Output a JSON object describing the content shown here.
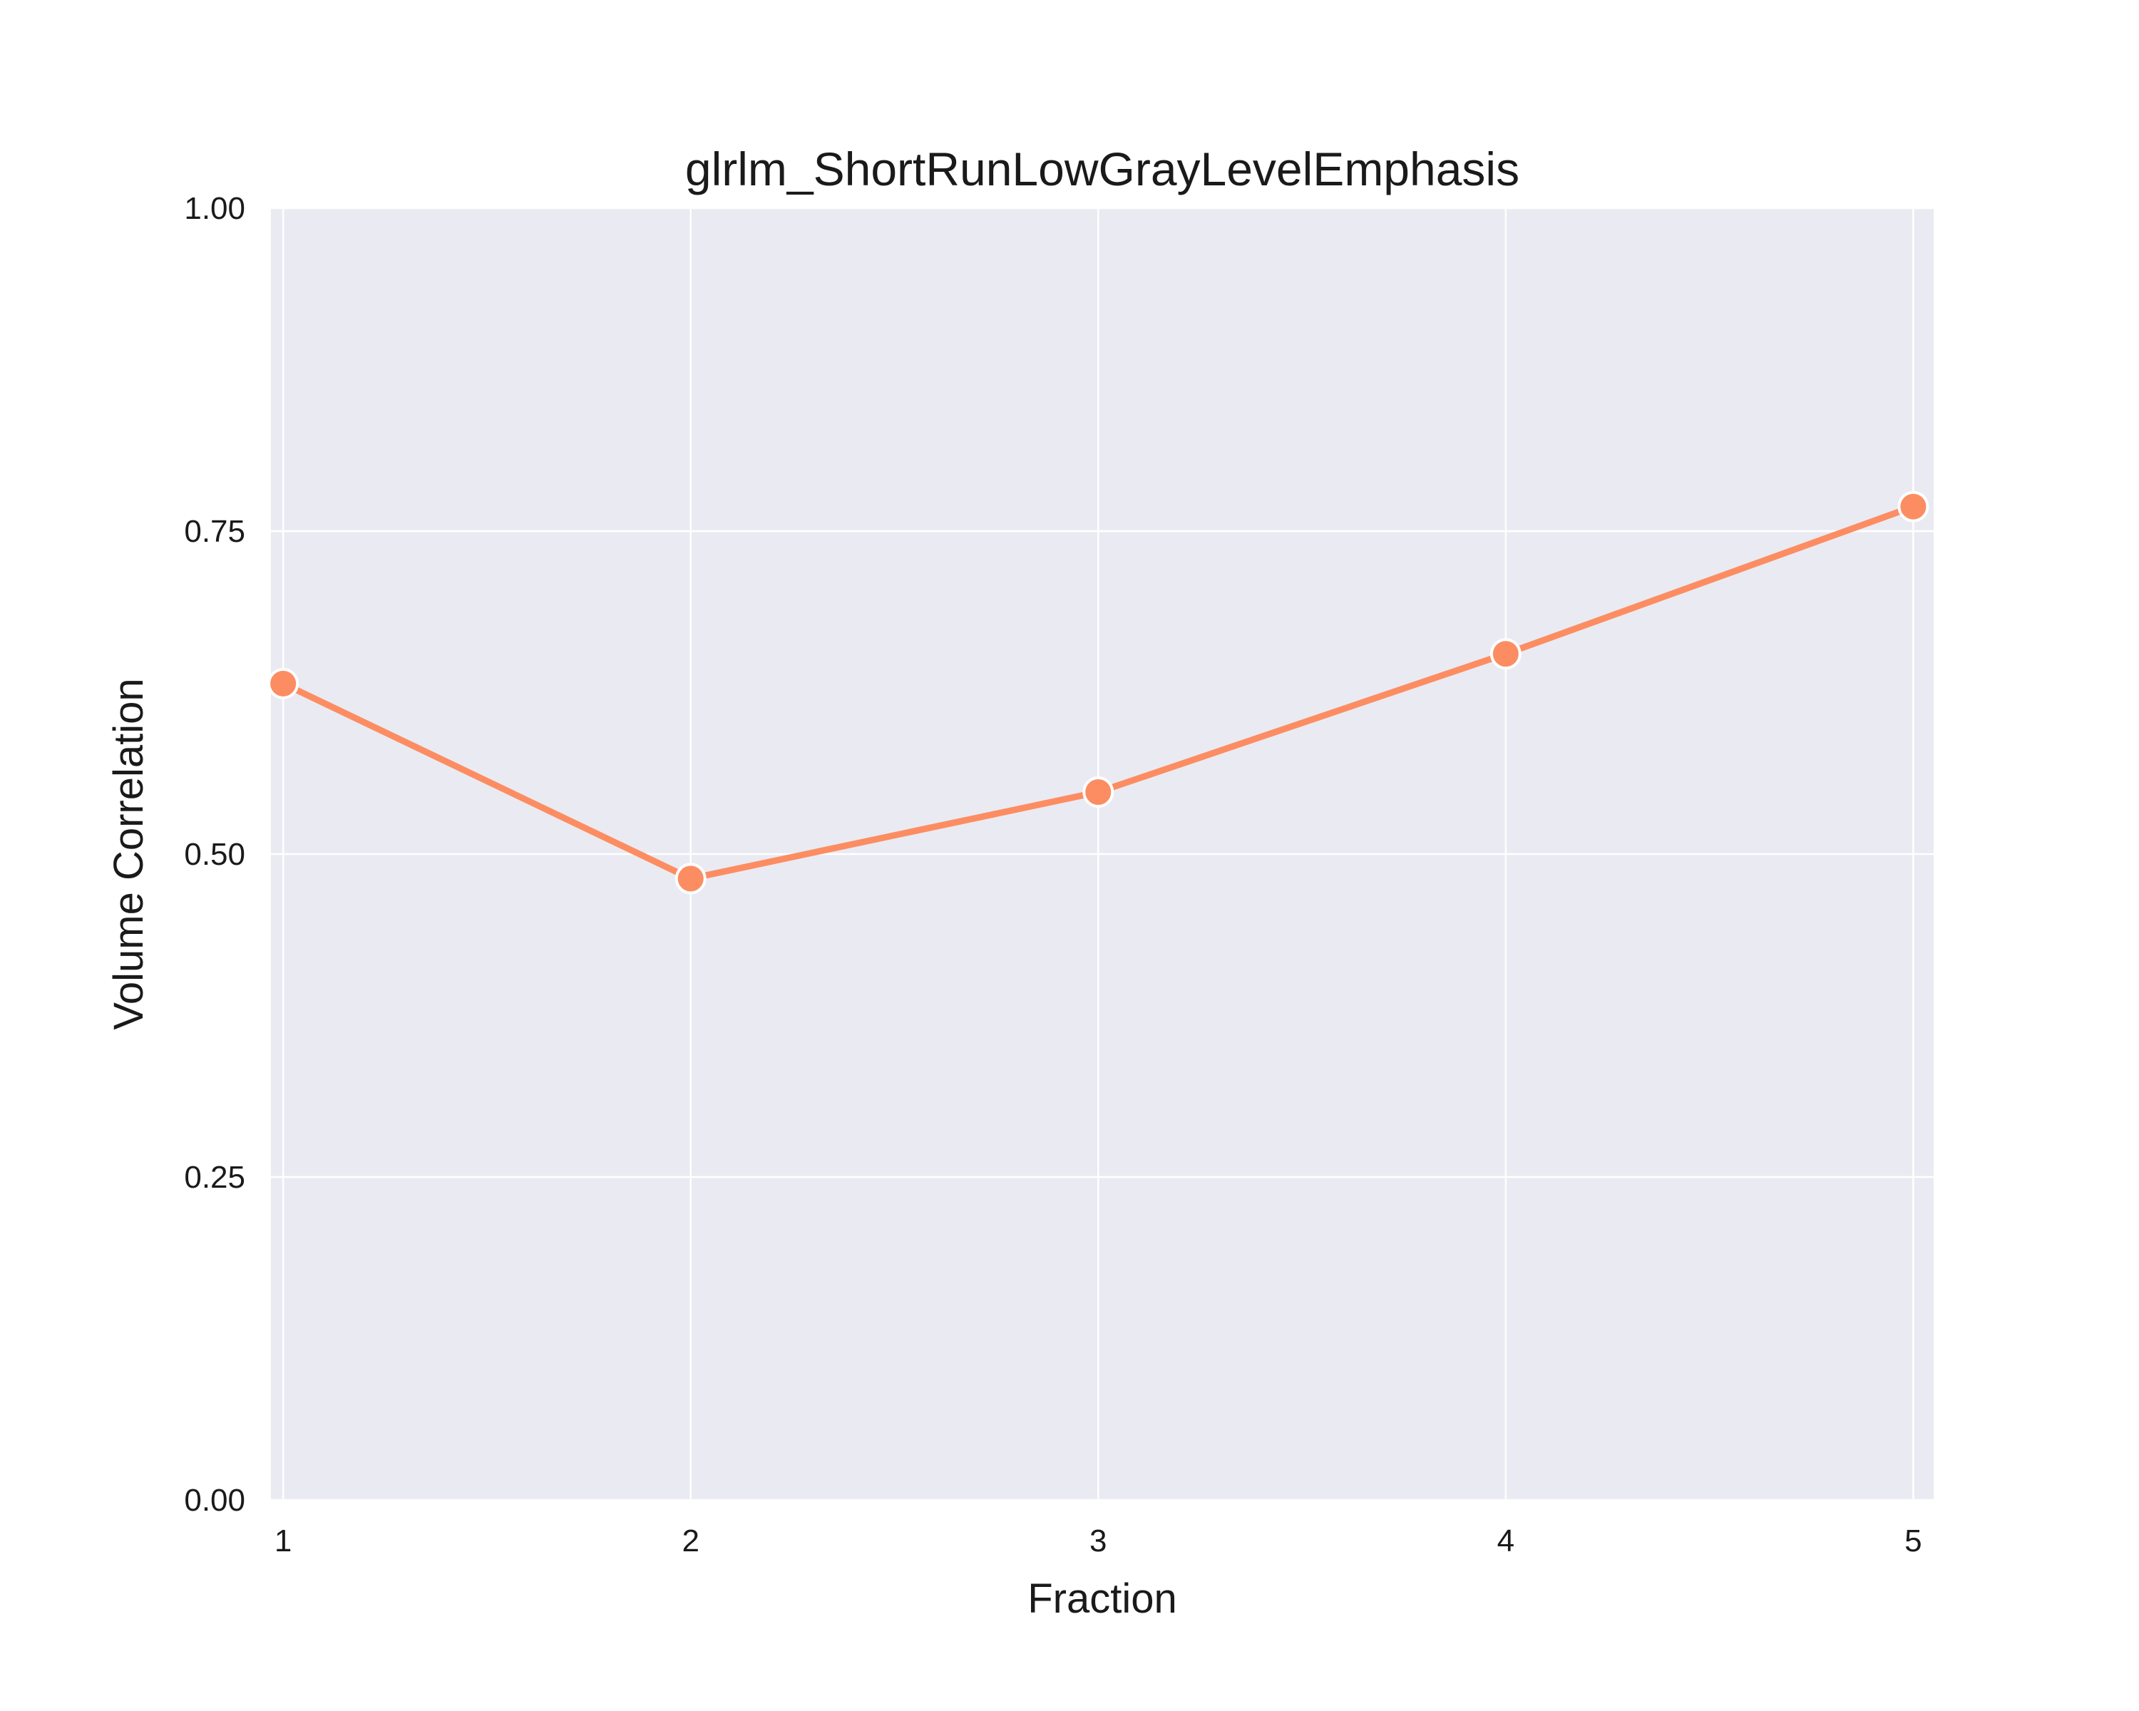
{
  "chart_data": {
    "type": "line",
    "title": "glrlm_ShortRunLowGrayLevelEmphasis",
    "xlabel": "Fraction",
    "ylabel": "Volume Correlation",
    "x": [
      1,
      2,
      3,
      4,
      5
    ],
    "series": [
      {
        "values": [
          0.632,
          0.481,
          0.548,
          0.655,
          0.769
        ],
        "color": "#fc8d62"
      }
    ],
    "xlim": [
      0.97,
      5.05
    ],
    "ylim": [
      0,
      1
    ],
    "xticks": [
      "1",
      "2",
      "3",
      "4",
      "5"
    ],
    "yticks": [
      "0.00",
      "0.25",
      "0.50",
      "0.75",
      "1.00"
    ],
    "grid": true,
    "background": "#eaeaf2",
    "grid_color": "#ffffff",
    "legend": "none"
  }
}
